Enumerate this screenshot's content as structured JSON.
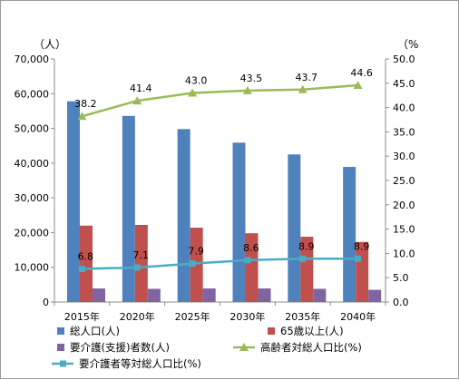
{
  "chart_data": {
    "type": "bar+line",
    "categories": [
      "2015年",
      "2020年",
      "2025年",
      "2030年",
      "2035年",
      "2040年"
    ],
    "y_left": {
      "unit_label": "（人）",
      "min": 0,
      "max": 70000,
      "step": 10000,
      "tick_labels": [
        "0",
        "10,000",
        "20,000",
        "30,000",
        "40,000",
        "50,000",
        "60,000",
        "70,000"
      ]
    },
    "y_right": {
      "unit_label": "（%",
      "min": 0,
      "max": 50,
      "step": 5,
      "tick_labels": [
        "0.0",
        "5.0",
        "10.0",
        "15.0",
        "20.0",
        "25.0",
        "30.0",
        "35.0",
        "40.0",
        "45.0",
        "50.0"
      ]
    },
    "bar_series": [
      {
        "name": "総人口(人)",
        "color": "#4F81BD",
        "values": [
          57800,
          53600,
          49800,
          45900,
          42500,
          38900
        ]
      },
      {
        "name": "65歳以上(人)",
        "color": "#C0504D",
        "values": [
          22000,
          22200,
          21400,
          19800,
          18800,
          17300
        ]
      },
      {
        "name": "要介護(支援)者数(人)",
        "color": "#8064A2",
        "values": [
          3900,
          3800,
          3900,
          3900,
          3800,
          3500
        ]
      }
    ],
    "line_series": [
      {
        "name": "高齢者対総人口比(%)",
        "color": "#9BBB59",
        "marker": "triangle",
        "values": [
          38.2,
          41.4,
          43.0,
          43.5,
          43.7,
          44.6
        ],
        "labels": [
          "38.2",
          "41.4",
          "43.0",
          "43.5",
          "43.7",
          "44.6"
        ]
      },
      {
        "name": "要介護者等対総人口比(%)",
        "color": "#4BACC6",
        "marker": "square",
        "values": [
          6.8,
          7.1,
          7.9,
          8.6,
          8.9,
          8.9
        ],
        "labels": [
          "6.8",
          "7.1",
          "7.9",
          "8.6",
          "8.9",
          "8.9"
        ]
      }
    ],
    "grid": false,
    "legend_position": "bottom"
  }
}
